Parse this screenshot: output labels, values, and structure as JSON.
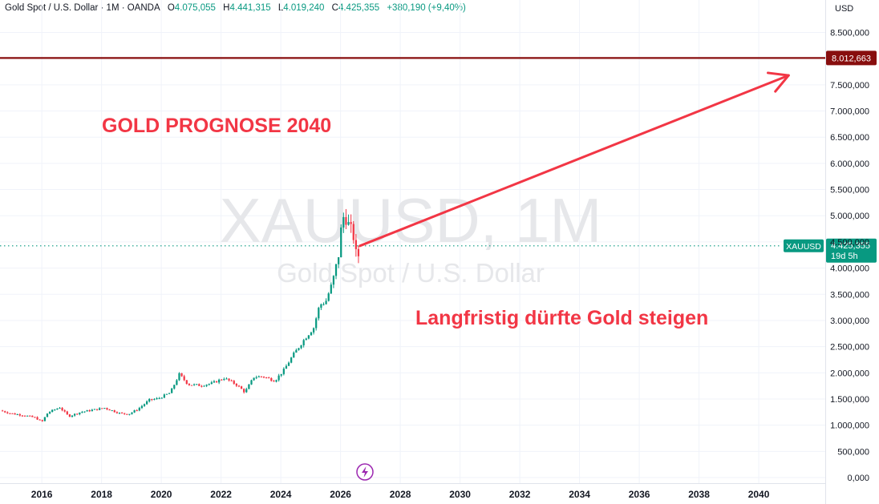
{
  "header": {
    "symbol_title": "Gold Spot / U.S. Dollar · 1M · OANDA",
    "open_key": "O",
    "open_val": "4.075,055",
    "high_key": "H",
    "high_val": "4.441,315",
    "low_key": "L",
    "low_val": "4.019,240",
    "close_key": "C",
    "close_val": "4.425,355",
    "change": "+380,190 (+9,40%)"
  },
  "currency_label": "USD",
  "watermark": {
    "line1": "XAUUSD, 1M",
    "line2": "Gold Spot / U.S. Dollar"
  },
  "annotations": {
    "title": "GOLD PROGNOSE 2040",
    "note": "Langfristig dürfte Gold steigen"
  },
  "price_tag": {
    "symbol": "XAUUSD",
    "value": "4.425,355",
    "countdown": "19d 5h"
  },
  "target_tag": {
    "value": "8.012,663"
  },
  "colors": {
    "up": "#089981",
    "down": "#f23645",
    "target_line": "#880e0e",
    "arrow": "#f23645",
    "annotation_text": "#f23645"
  },
  "event_icon": "lightning-icon",
  "chart_data": {
    "type": "candlestick",
    "title": "",
    "xlabel": "",
    "ylabel": "",
    "x_ticks": [
      "2016",
      "2018",
      "2020",
      "2022",
      "2024",
      "2026",
      "2028",
      "2030",
      "2032",
      "2034",
      "2036",
      "2038",
      "2040"
    ],
    "y_ticks": [
      "0,000",
      "500,000",
      "1.000,000",
      "1.500,000",
      "2.000,000",
      "2.500,000",
      "3.000,000",
      "3.500,000",
      "4.000,000",
      "4.500,000",
      "5.000,000",
      "5.500,000",
      "6.000,000",
      "6.500,000",
      "7.000,000",
      "7.500,000",
      "8.500,000"
    ],
    "ylim": [
      0,
      8750
    ],
    "xlim": [
      2014.6,
      2042.2
    ],
    "current_price": 4425.355,
    "target_price": 8012.663,
    "forecast_arrow": {
      "from": [
        2026.65,
        4425
      ],
      "to": [
        2041.0,
        7680
      ]
    },
    "monthly_close_path": [
      [
        2014.6,
        1280
      ],
      [
        2015.0,
        1220
      ],
      [
        2015.4,
        1190
      ],
      [
        2015.8,
        1140
      ],
      [
        2016.0,
        1060
      ],
      [
        2016.2,
        1240
      ],
      [
        2016.6,
        1340
      ],
      [
        2016.9,
        1170
      ],
      [
        2017.3,
        1250
      ],
      [
        2017.8,
        1300
      ],
      [
        2018.1,
        1330
      ],
      [
        2018.6,
        1230
      ],
      [
        2018.9,
        1210
      ],
      [
        2019.2,
        1300
      ],
      [
        2019.6,
        1480
      ],
      [
        2019.9,
        1510
      ],
      [
        2020.3,
        1620
      ],
      [
        2020.6,
        1970
      ],
      [
        2020.9,
        1780
      ],
      [
        2021.3,
        1760
      ],
      [
        2021.7,
        1800
      ],
      [
        2022.1,
        1900
      ],
      [
        2022.5,
        1780
      ],
      [
        2022.8,
        1630
      ],
      [
        2023.1,
        1920
      ],
      [
        2023.4,
        1930
      ],
      [
        2023.8,
        1850
      ],
      [
        2024.1,
        2050
      ],
      [
        2024.4,
        2330
      ],
      [
        2024.8,
        2650
      ],
      [
        2025.1,
        2860
      ],
      [
        2025.3,
        3300
      ],
      [
        2025.5,
        3350
      ],
      [
        2025.8,
        3850
      ],
      [
        2025.95,
        4320
      ],
      [
        2026.05,
        4900
      ],
      [
        2026.15,
        5050
      ],
      [
        2026.3,
        4750
      ],
      [
        2026.45,
        4600
      ],
      [
        2026.55,
        4075
      ],
      [
        2026.65,
        4425
      ]
    ]
  }
}
